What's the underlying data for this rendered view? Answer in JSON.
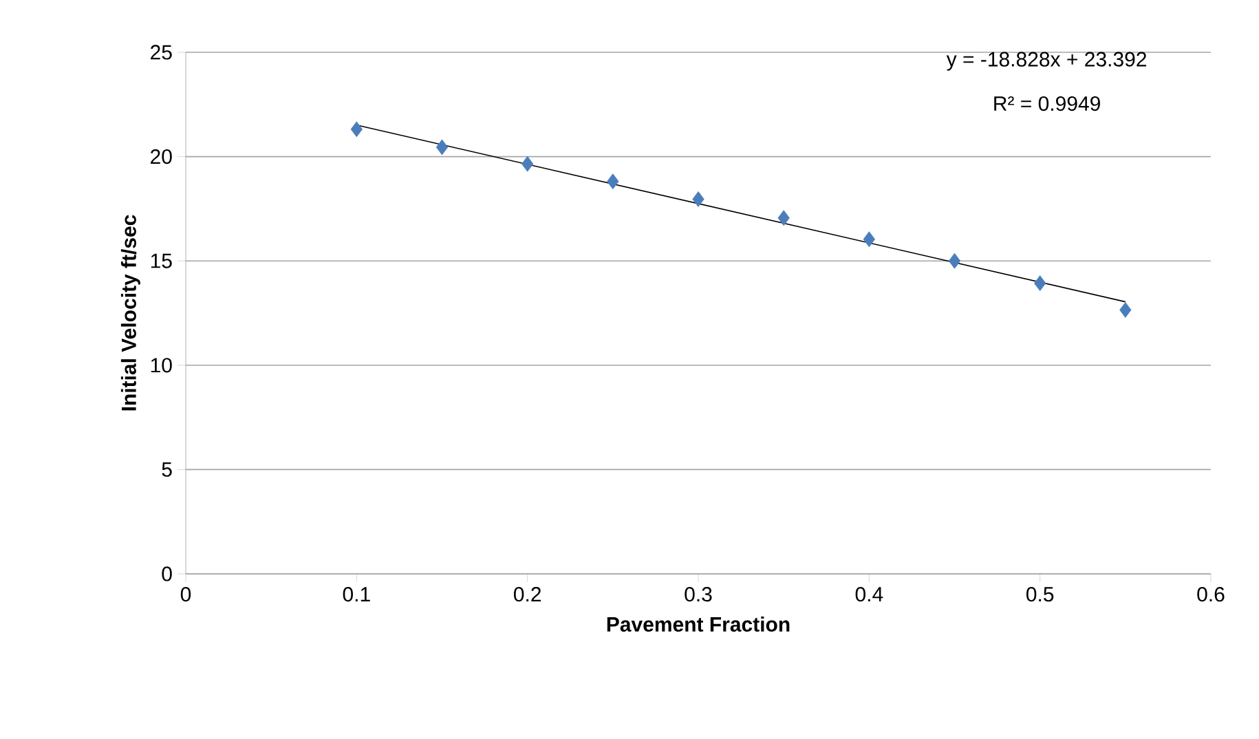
{
  "chart_data": {
    "type": "scatter",
    "xlabel": "Pavement Fraction",
    "ylabel": "Initial Velocity ft/sec",
    "annotations": [
      "y = -18.828x + 23.392",
      "R² = 0.9949"
    ],
    "xlim": [
      0,
      0.6
    ],
    "ylim": [
      0,
      25
    ],
    "xticks": [
      0,
      0.1,
      0.2,
      0.3,
      0.4,
      0.5,
      0.6
    ],
    "yticks": [
      0,
      5,
      10,
      15,
      20,
      25
    ],
    "grid": "y",
    "marker": "diamond",
    "series": [
      {
        "color": "#4a7ebb",
        "x": [
          0.1,
          0.15,
          0.2,
          0.25,
          0.3,
          0.35,
          0.4,
          0.45,
          0.5,
          0.55
        ],
        "values": [
          21.31,
          20.45,
          19.65,
          18.81,
          17.96,
          17.06,
          16.04,
          15.0,
          13.93,
          12.65
        ]
      },
      {
        "type": "line",
        "color": "#000000",
        "marker": "none",
        "x": [
          0.1,
          0.55
        ],
        "values": [
          21.51,
          13.04
        ]
      }
    ]
  }
}
